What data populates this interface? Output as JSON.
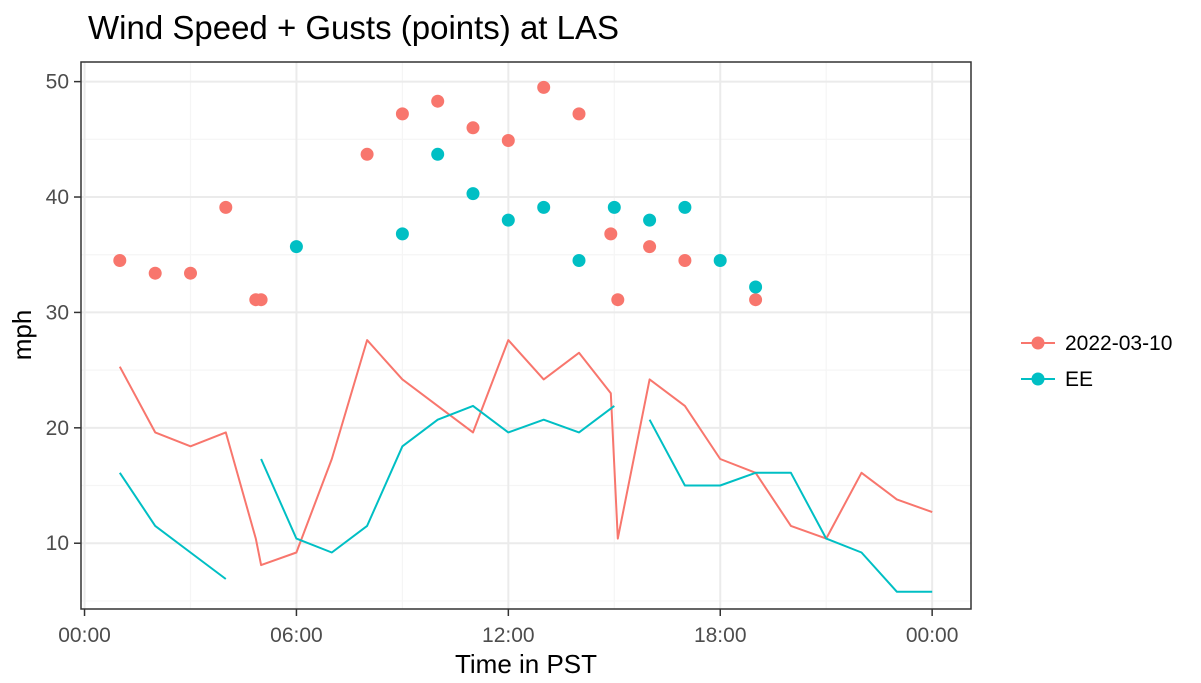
{
  "chart_data": {
    "type": "line",
    "title": "Wind Speed + Gusts (points) at LAS",
    "xlabel": "Time in PST",
    "ylabel": "mph",
    "x_ticks": [
      {
        "hour": 0,
        "label": "00:00"
      },
      {
        "hour": 6,
        "label": "06:00"
      },
      {
        "hour": 12,
        "label": "12:00"
      },
      {
        "hour": 18,
        "label": "18:00"
      },
      {
        "hour": 24,
        "label": "00:00"
      }
    ],
    "y_ticks": [
      10,
      20,
      30,
      40,
      50
    ],
    "xlim": [
      -0.1,
      25.1
    ],
    "ylim": [
      4.3,
      51.7
    ],
    "grid": true,
    "legend_position": "right",
    "series": [
      {
        "name": "2022-03-10",
        "color": "#F8766D",
        "speed_segments": [
          [
            [
              1,
              25.3
            ],
            [
              2,
              19.6
            ],
            [
              3,
              18.4
            ],
            [
              4,
              19.6
            ],
            [
              4.85,
              10.4
            ],
            [
              5.0,
              8.1
            ],
            [
              6,
              9.2
            ],
            [
              7,
              17.3
            ],
            [
              8,
              27.6
            ],
            [
              9,
              24.2
            ],
            [
              10,
              21.9
            ],
            [
              11,
              19.6
            ],
            [
              12,
              27.6
            ],
            [
              13,
              24.2
            ],
            [
              14,
              26.5
            ],
            [
              14.9,
              23.0
            ],
            [
              15.1,
              10.4
            ],
            [
              16,
              24.2
            ],
            [
              17,
              21.9
            ],
            [
              18,
              17.3
            ],
            [
              19,
              16.1
            ],
            [
              20,
              11.5
            ],
            [
              21,
              10.4
            ],
            [
              22,
              16.1
            ],
            [
              23,
              13.8
            ],
            [
              24,
              12.7
            ]
          ]
        ],
        "gusts": [
          [
            1,
            34.5
          ],
          [
            2,
            33.4
          ],
          [
            3,
            33.4
          ],
          [
            4,
            39.1
          ],
          [
            4.85,
            31.1
          ],
          [
            5.0,
            31.1
          ],
          [
            8,
            43.7
          ],
          [
            9,
            47.2
          ],
          [
            10,
            48.3
          ],
          [
            11,
            46.0
          ],
          [
            12,
            44.9
          ],
          [
            13,
            49.5
          ],
          [
            14,
            47.2
          ],
          [
            14.9,
            36.8
          ],
          [
            15.1,
            31.1
          ],
          [
            16,
            35.7
          ],
          [
            17,
            34.5
          ],
          [
            19,
            31.1
          ]
        ]
      },
      {
        "name": "EE",
        "color": "#00BFC4",
        "speed_segments": [
          [
            [
              1,
              16.1
            ],
            [
              2,
              11.5
            ],
            [
              3,
              9.2
            ],
            [
              4,
              6.9
            ]
          ],
          [
            [
              5,
              17.3
            ],
            [
              6,
              10.4
            ],
            [
              7,
              9.2
            ],
            [
              8,
              11.5
            ],
            [
              9,
              18.4
            ],
            [
              10,
              20.7
            ],
            [
              11,
              21.9
            ],
            [
              12,
              19.6
            ],
            [
              13,
              20.7
            ],
            [
              14,
              19.6
            ],
            [
              15,
              21.9
            ]
          ],
          [
            [
              16,
              20.7
            ],
            [
              17,
              15.0
            ],
            [
              18,
              15.0
            ],
            [
              19,
              16.1
            ],
            [
              20,
              16.1
            ],
            [
              21,
              10.4
            ],
            [
              22,
              9.2
            ],
            [
              23,
              5.8
            ],
            [
              24,
              5.8
            ]
          ]
        ],
        "gusts": [
          [
            6,
            35.7
          ],
          [
            9,
            36.8
          ],
          [
            10,
            43.7
          ],
          [
            11,
            40.3
          ],
          [
            12,
            38.0
          ],
          [
            13,
            39.1
          ],
          [
            14,
            34.5
          ],
          [
            15,
            39.1
          ],
          [
            16,
            38.0
          ],
          [
            17,
            39.1
          ],
          [
            18,
            34.5
          ],
          [
            19,
            32.2
          ]
        ]
      }
    ]
  }
}
